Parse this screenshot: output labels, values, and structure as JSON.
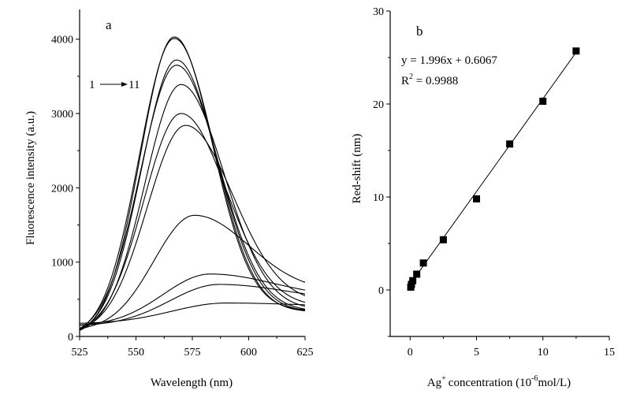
{
  "chart_data": [
    {
      "type": "line",
      "panel_label": "a",
      "xlabel": "Wavelength (nm)",
      "ylabel": "Fluorescence intensity (a.u.)",
      "xlim": [
        525,
        625
      ],
      "ylim": [
        0,
        4400
      ],
      "xticks": [
        525,
        550,
        575,
        600,
        625
      ],
      "yticks": [
        0,
        1000,
        2000,
        3000,
        4000
      ],
      "annotation": {
        "from": "1",
        "to": "11"
      },
      "series": [
        {
          "name": "1",
          "peak_x": 567,
          "peak_y": 4030,
          "w_left": 15.0,
          "w_right": 17.0,
          "baseline": 0,
          "tail": 350
        },
        {
          "name": "2",
          "peak_x": 567,
          "peak_y": 4010,
          "w_left": 15.5,
          "w_right": 17.5,
          "baseline": 0,
          "tail": 330
        },
        {
          "name": "3",
          "peak_x": 568,
          "peak_y": 3720,
          "w_left": 15.5,
          "w_right": 18.0,
          "baseline": 10,
          "tail": 330
        },
        {
          "name": "4",
          "peak_x": 568,
          "peak_y": 3650,
          "w_left": 16.0,
          "w_right": 18.5,
          "baseline": 10,
          "tail": 340
        },
        {
          "name": "5",
          "peak_x": 570,
          "peak_y": 3390,
          "w_left": 16.0,
          "w_right": 19.0,
          "baseline": 20,
          "tail": 360
        },
        {
          "name": "6",
          "peak_x": 570,
          "peak_y": 3000,
          "w_left": 16.5,
          "w_right": 20.0,
          "baseline": 30,
          "tail": 400
        },
        {
          "name": "7",
          "peak_x": 572,
          "peak_y": 2840,
          "w_left": 17.0,
          "w_right": 21.0,
          "baseline": 40,
          "tail": 450
        },
        {
          "name": "8",
          "peak_x": 576,
          "peak_y": 1630,
          "w_left": 18.0,
          "w_right": 24.0,
          "baseline": 80,
          "tail": 600
        },
        {
          "name": "9",
          "peak_x": 583,
          "peak_y": 840,
          "w_left": 21.0,
          "w_right": 28.0,
          "baseline": 140,
          "tail": 520
        },
        {
          "name": "10",
          "peak_x": 587,
          "peak_y": 700,
          "w_left": 22.0,
          "w_right": 30.0,
          "baseline": 140,
          "tail": 470
        },
        {
          "name": "11",
          "peak_x": 590,
          "peak_y": 450,
          "w_left": 24.0,
          "w_right": 34.0,
          "baseline": 170,
          "tail": 390
        }
      ]
    },
    {
      "type": "scatter",
      "panel_label": "b",
      "xlabel_main": "Ag",
      "xlabel_sup": "+",
      "xlabel_mid": "concentration (10",
      "xlabel_exp": "-6",
      "xlabel_unit": "mol/L)",
      "ylabel": "Red-shift (nm)",
      "xlim": [
        -1.5,
        15
      ],
      "ylim": [
        -5,
        30
      ],
      "xticks": [
        0,
        5,
        10,
        15
      ],
      "yticks": [
        0,
        10,
        20,
        30
      ],
      "points": [
        {
          "x": 0.05,
          "y": 0.3
        },
        {
          "x": 0.1,
          "y": 0.6
        },
        {
          "x": 0.2,
          "y": 1.0
        },
        {
          "x": 0.5,
          "y": 1.7
        },
        {
          "x": 1.0,
          "y": 2.9
        },
        {
          "x": 2.5,
          "y": 5.4
        },
        {
          "x": 5.0,
          "y": 9.8
        },
        {
          "x": 7.5,
          "y": 15.7
        },
        {
          "x": 10.0,
          "y": 20.3
        },
        {
          "x": 12.5,
          "y": 25.7
        }
      ],
      "fit": {
        "slope": 1.996,
        "intercept": 0.6067,
        "x_range": [
          0,
          12.5
        ]
      },
      "equation": "y = 1.996x + 0.6067",
      "r2_prefix": "R",
      "r2_sup": "2",
      "r2_value": " = 0.9988"
    }
  ]
}
